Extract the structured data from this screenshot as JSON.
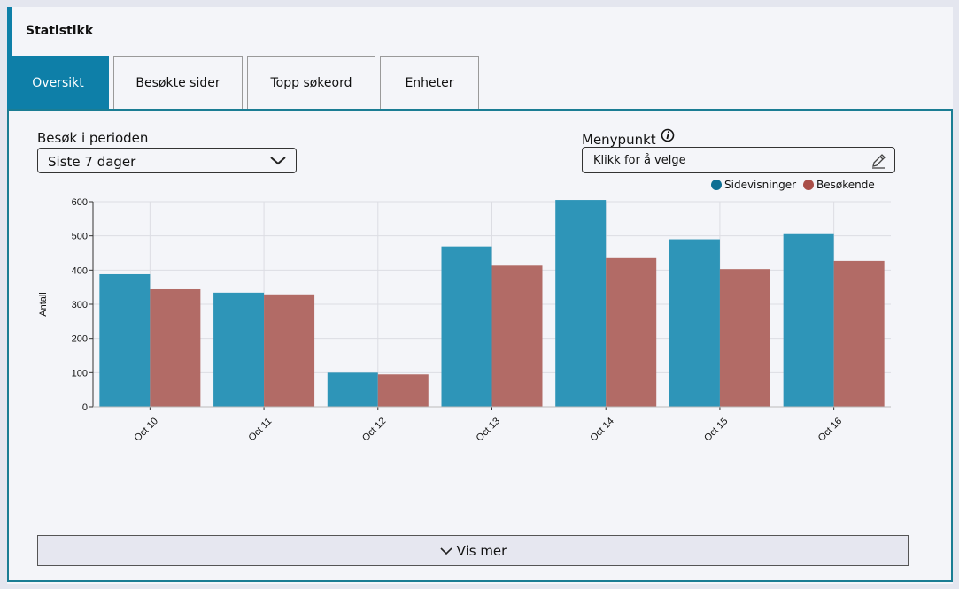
{
  "header": {
    "title": "Statistikk"
  },
  "tabs": [
    {
      "label": "Oversikt",
      "active": true
    },
    {
      "label": "Besøkte sider",
      "active": false
    },
    {
      "label": "Topp søkeord",
      "active": false
    },
    {
      "label": "Enheter",
      "active": false
    }
  ],
  "filters": {
    "period_label": "Besøk i perioden",
    "period_value": "Siste 7 dager",
    "menu_label": "Menypunkt",
    "menu_placeholder": "Klikk for å velge"
  },
  "legend": [
    {
      "name": "Sidevisninger",
      "color": "#2e95b8"
    },
    {
      "name": "Besøkende",
      "color": "#b26b66"
    }
  ],
  "chart_data": {
    "type": "bar",
    "categories": [
      "Oct 10",
      "Oct 11",
      "Oct 12",
      "Oct 13",
      "Oct 14",
      "Oct 15",
      "Oct 16"
    ],
    "series": [
      {
        "name": "Sidevisninger",
        "color": "#2e95b8",
        "values": [
          388,
          334,
          100,
          469,
          605,
          490,
          505
        ]
      },
      {
        "name": "Besøkende",
        "color": "#b26b66",
        "values": [
          344,
          329,
          95,
          413,
          435,
          403,
          427
        ]
      }
    ],
    "ylabel": "Antall",
    "xlabel": "",
    "ylim": [
      0,
      600
    ],
    "yticks": [
      0,
      100,
      200,
      300,
      400,
      500,
      600
    ],
    "grid": true,
    "legend_position": "top-right"
  },
  "footer": {
    "more_label": "Vis mer"
  }
}
